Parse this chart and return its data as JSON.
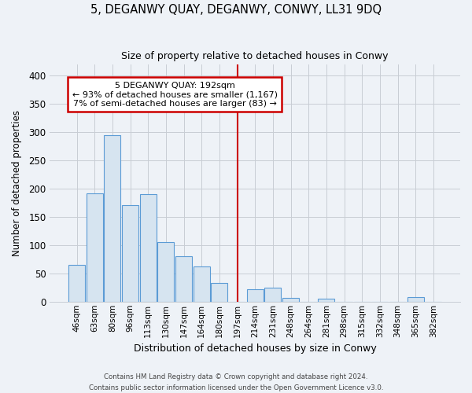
{
  "title": "5, DEGANWY QUAY, DEGANWY, CONWY, LL31 9DQ",
  "subtitle": "Size of property relative to detached houses in Conwy",
  "xlabel": "Distribution of detached houses by size in Conwy",
  "ylabel": "Number of detached properties",
  "bin_labels": [
    "46sqm",
    "63sqm",
    "80sqm",
    "96sqm",
    "113sqm",
    "130sqm",
    "147sqm",
    "164sqm",
    "180sqm",
    "197sqm",
    "214sqm",
    "231sqm",
    "248sqm",
    "264sqm",
    "281sqm",
    "298sqm",
    "315sqm",
    "332sqm",
    "348sqm",
    "365sqm",
    "382sqm"
  ],
  "bar_heights": [
    65,
    192,
    295,
    171,
    190,
    105,
    80,
    62,
    33,
    0,
    22,
    25,
    7,
    0,
    5,
    0,
    0,
    0,
    0,
    8,
    0
  ],
  "bar_color": "#d6e4f0",
  "bar_edge_color": "#5b9bd5",
  "vline_color": "#cc0000",
  "annotation_line1": "5 DEGANWY QUAY: 192sqm",
  "annotation_line2": "← 93% of detached houses are smaller (1,167)",
  "annotation_line3": "7% of semi-detached houses are larger (83) →",
  "annotation_box_color": "#ffffff",
  "annotation_box_edge_color": "#cc0000",
  "ylim": [
    0,
    420
  ],
  "yticks": [
    0,
    50,
    100,
    150,
    200,
    250,
    300,
    350,
    400
  ],
  "footer_line1": "Contains HM Land Registry data © Crown copyright and database right 2024.",
  "footer_line2": "Contains public sector information licensed under the Open Government Licence v3.0.",
  "bg_color": "#eef2f7",
  "grid_color": "#c8cdd4"
}
